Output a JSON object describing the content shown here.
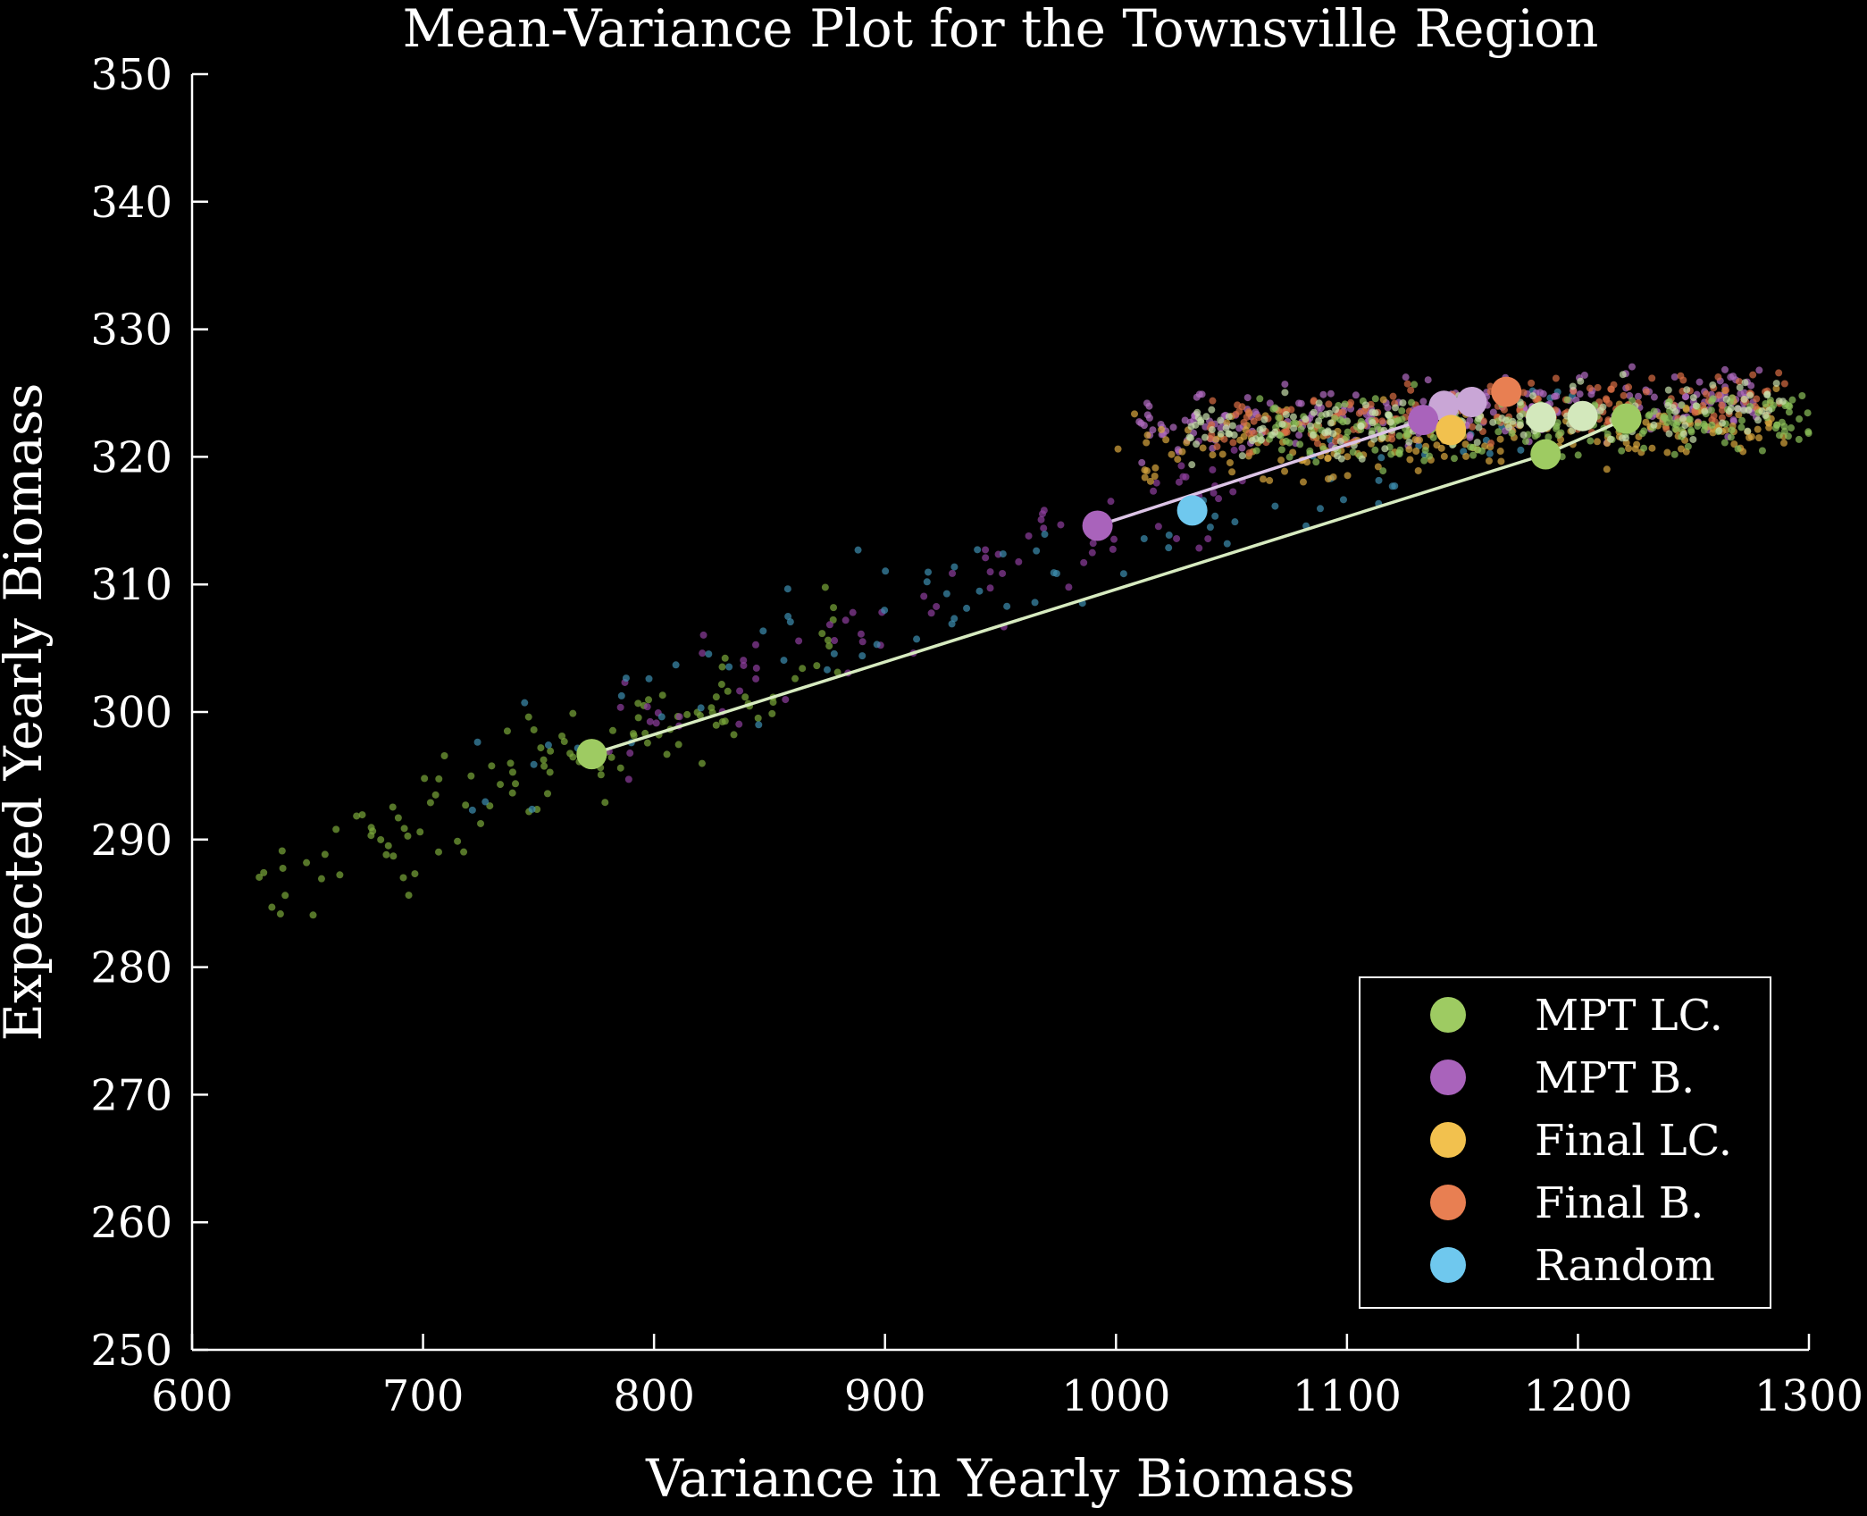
{
  "chart_data": {
    "type": "scatter",
    "title": "Mean-Variance Plot for the Townsville Region",
    "xlabel": "Variance in Yearly Biomass",
    "ylabel": "Expected Yearly Biomass",
    "xlim": [
      600,
      1300
    ],
    "ylim": [
      250,
      350
    ],
    "xticks": [
      600,
      700,
      800,
      900,
      1000,
      1100,
      1200,
      1300
    ],
    "yticks": [
      250,
      260,
      270,
      280,
      290,
      300,
      310,
      320,
      330,
      340,
      350
    ],
    "grid": false,
    "legend_position": "bottom-right",
    "series": [
      {
        "name": "MPT LC.",
        "color": "#9ecb62",
        "points": [
          [
            773,
            296.7
          ],
          [
            1186,
            320.2
          ],
          [
            1221,
            323.0
          ]
        ]
      },
      {
        "name": "MPT B.",
        "color": "#a963bb",
        "points": [
          [
            992,
            314.6
          ],
          [
            1133,
            322.9
          ]
        ]
      },
      {
        "name": "Final LC.",
        "color": "#f2c14e",
        "points": [
          [
            1145,
            322.1
          ]
        ]
      },
      {
        "name": "Final B.",
        "color": "#e87f52",
        "points": [
          [
            1169,
            325.1
          ]
        ]
      },
      {
        "name": "Random",
        "color": "#6fc8ee",
        "points": [
          [
            1033,
            315.8
          ]
        ]
      }
    ],
    "extra_markers": [
      {
        "color": "#c9a6d6",
        "x": 1142,
        "y": 324.0
      },
      {
        "color": "#c9a6d6",
        "x": 1154,
        "y": 324.3
      },
      {
        "color": "#d3e8bc",
        "x": 1184,
        "y": 323.1
      },
      {
        "color": "#d3e8bc",
        "x": 1202,
        "y": 323.2
      }
    ],
    "frontier_lines": [
      {
        "color": "#d7ebc0",
        "points": [
          [
            773,
            296.7
          ],
          [
            1186,
            320.2
          ],
          [
            1221,
            323.0
          ]
        ]
      },
      {
        "color": "#dcc4e6",
        "points": [
          [
            992,
            314.6
          ],
          [
            1133,
            322.9
          ]
        ]
      }
    ],
    "background_clouds": [
      {
        "color": "#7aa83a",
        "x_range": [
          628,
          880
        ],
        "slope": 0.08,
        "y_at_600": 283,
        "spread": 3.5,
        "count": 120
      },
      {
        "color": "#8e3f9e",
        "x_range": [
          780,
          1060
        ],
        "slope": 0.075,
        "y_at_600": 285,
        "spread": 3.5,
        "count": 80
      },
      {
        "color": "#3d8fb0",
        "x_range": [
          720,
          1200
        ],
        "slope": 0.06,
        "y_at_600": 289,
        "spread": 4.0,
        "count": 90
      },
      {
        "color": "#b26cc2",
        "x_range": [
          1010,
          1280
        ],
        "slope": 0.01,
        "y_at_600": 318,
        "spread": 2.0,
        "count": 260
      },
      {
        "color": "#d8a63e",
        "x_range": [
          1000,
          1290
        ],
        "slope": 0.01,
        "y_at_600": 316,
        "spread": 2.2,
        "count": 200
      },
      {
        "color": "#d96d45",
        "x_range": [
          1040,
          1290
        ],
        "slope": 0.01,
        "y_at_600": 318,
        "spread": 1.8,
        "count": 200
      },
      {
        "color": "#8cc15a",
        "x_range": [
          1060,
          1300
        ],
        "slope": 0.005,
        "y_at_600": 319.5,
        "spread": 2.0,
        "count": 240
      },
      {
        "color": "#c9e0ad",
        "x_range": [
          1030,
          1290
        ],
        "slope": 0.008,
        "y_at_600": 318.5,
        "spread": 1.8,
        "count": 160
      }
    ]
  }
}
